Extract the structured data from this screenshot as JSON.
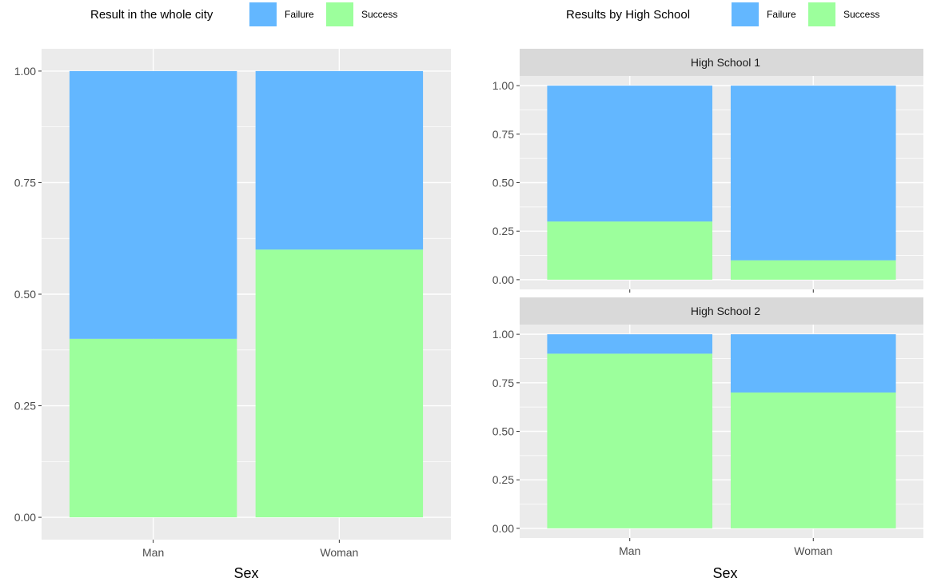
{
  "colors": {
    "Failure": "#63b7ff",
    "Success": "#9cff9c"
  },
  "chart_data": [
    {
      "type": "bar",
      "stacked": true,
      "legend_title": "Result in the whole city",
      "legend_position": "top",
      "legend_entries": [
        "Failure",
        "Success"
      ],
      "xlabel": "Sex",
      "ylabel": "",
      "ylim": [
        0,
        1
      ],
      "yticks": [
        "0.00",
        "0.25",
        "0.50",
        "0.75",
        "1.00"
      ],
      "categories": [
        "Man",
        "Woman"
      ],
      "series": [
        {
          "name": "Success",
          "values": [
            0.4,
            0.6
          ]
        },
        {
          "name": "Failure",
          "values": [
            0.6,
            0.4
          ]
        }
      ]
    },
    {
      "type": "bar",
      "stacked": true,
      "legend_title": "Results by High School",
      "legend_position": "top",
      "legend_entries": [
        "Failure",
        "Success"
      ],
      "xlabel": "Sex",
      "ylabel": "",
      "ylim": [
        0,
        1
      ],
      "yticks": [
        "0.00",
        "0.25",
        "0.50",
        "0.75",
        "1.00"
      ],
      "categories": [
        "Man",
        "Woman"
      ],
      "facets": [
        {
          "label": "High School 1",
          "series": [
            {
              "name": "Success",
              "values": [
                0.3,
                0.1
              ]
            },
            {
              "name": "Failure",
              "values": [
                0.7,
                0.9
              ]
            }
          ]
        },
        {
          "label": "High School 2",
          "series": [
            {
              "name": "Success",
              "values": [
                0.9,
                0.7
              ]
            },
            {
              "name": "Failure",
              "values": [
                0.1,
                0.3
              ]
            }
          ]
        }
      ]
    }
  ]
}
